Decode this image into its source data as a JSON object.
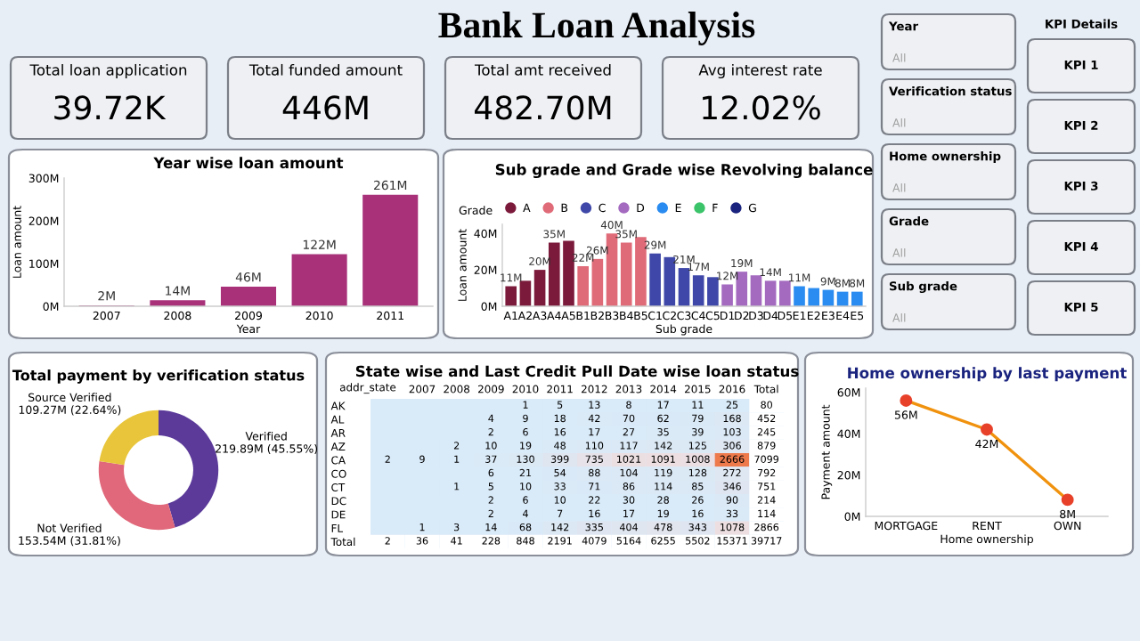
{
  "chart_data": [
    {
      "type": "other",
      "title": "Bank Loan Analysis",
      "annotations": [
        "Total loan application",
        "39.72K",
        "Total funded amount",
        "446M",
        "Total amt received",
        "482.70M",
        "Avg interest rate",
        "12.02%"
      ]
    },
    {
      "type": "other",
      "annotations": [
        "Year",
        "All",
        "Verification status",
        "All",
        "Home ownership",
        "All",
        "Grade",
        "All",
        "Sub grade",
        "All"
      ]
    },
    {
      "type": "other",
      "title": "KPI Details",
      "annotations": [
        "KPI 1",
        "KPI 2",
        "KPI 3",
        "KPI 4",
        "KPI 5"
      ]
    },
    {
      "type": "bar",
      "title": "Year wise loan amount",
      "xlabel": "Year",
      "ylabel": "Loan amount",
      "categories": [
        "2007",
        "2008",
        "2009",
        "2010",
        "2011"
      ],
      "values": [
        2,
        14,
        46,
        122,
        261
      ],
      "color": "#a8317a",
      "value_labels": [
        "2M",
        "14M",
        "46M",
        "122M",
        "261M"
      ],
      "ylim": [
        0,
        300
      ],
      "yticks": [
        {
          "value": 0,
          "label": "0M"
        },
        {
          "value": 100,
          "label": "100M"
        },
        {
          "value": 200,
          "label": "200M"
        },
        {
          "value": 300,
          "label": "300M"
        }
      ]
    },
    {
      "type": "bar",
      "title": "Sub grade and Grade wise Revolving balance",
      "xlabel": "Sub grade",
      "ylabel": "Loan amount",
      "legend_title": "Grade",
      "legend": "top left",
      "categories": [
        "A1",
        "A2",
        "A3",
        "A4",
        "A5",
        "B1",
        "B2",
        "B3",
        "B4",
        "B5",
        "C1",
        "C2",
        "C3",
        "C4",
        "C5",
        "D1",
        "D2",
        "D3",
        "D4",
        "D5",
        "E1",
        "E2",
        "E3",
        "E4",
        "E5"
      ],
      "ylim": [
        0,
        45
      ],
      "yticks": [
        {
          "value": 0,
          "label": "0M"
        },
        {
          "value": 20,
          "label": "20M"
        },
        {
          "value": 40,
          "label": "40M"
        }
      ],
      "series": [
        {
          "name": "A",
          "color": "#7b1a3a",
          "values": [
            11,
            14,
            20,
            35,
            36,
            null,
            null,
            null,
            null,
            null,
            null,
            null,
            null,
            null,
            null,
            null,
            null,
            null,
            null,
            null,
            null,
            null,
            null,
            null,
            null
          ],
          "value_labels": [
            "11M",
            null,
            "20M",
            "35M",
            null,
            null,
            null,
            null,
            null,
            null,
            null,
            null,
            null,
            null,
            null,
            null,
            null,
            null,
            null,
            null,
            null,
            null,
            null,
            null,
            null
          ]
        },
        {
          "name": "B",
          "color": "#e06b78",
          "values": [
            null,
            null,
            null,
            null,
            null,
            22,
            26,
            40,
            35,
            38,
            null,
            null,
            null,
            null,
            null,
            null,
            null,
            null,
            null,
            null,
            null,
            null,
            null,
            null,
            null
          ],
          "value_labels": [
            null,
            null,
            null,
            null,
            null,
            "22M",
            "26M",
            "40M",
            "35M",
            null,
            null,
            null,
            null,
            null,
            null,
            null,
            null,
            null,
            null,
            null,
            null,
            null,
            null,
            null,
            null
          ]
        },
        {
          "name": "C",
          "color": "#3f48a8",
          "values": [
            null,
            null,
            null,
            null,
            null,
            null,
            null,
            null,
            null,
            null,
            29,
            27,
            21,
            17,
            16,
            null,
            null,
            null,
            null,
            null,
            null,
            null,
            null,
            null,
            null
          ],
          "value_labels": [
            null,
            null,
            null,
            null,
            null,
            null,
            null,
            null,
            null,
            null,
            "29M",
            null,
            "21M",
            "17M",
            null,
            null,
            null,
            null,
            null,
            null,
            null,
            null,
            null,
            null,
            null
          ]
        },
        {
          "name": "D",
          "color": "#a46ac0",
          "values": [
            null,
            null,
            null,
            null,
            null,
            null,
            null,
            null,
            null,
            null,
            null,
            null,
            null,
            null,
            null,
            12,
            19,
            17,
            14,
            14,
            null,
            null,
            null,
            null,
            null
          ],
          "value_labels": [
            null,
            null,
            null,
            null,
            null,
            null,
            null,
            null,
            null,
            null,
            null,
            null,
            null,
            null,
            null,
            "12M",
            "19M",
            null,
            "14M",
            null,
            null,
            null,
            null,
            null,
            null
          ]
        },
        {
          "name": "E",
          "color": "#2a8cf0",
          "values": [
            null,
            null,
            null,
            null,
            null,
            null,
            null,
            null,
            null,
            null,
            null,
            null,
            null,
            null,
            null,
            null,
            null,
            null,
            null,
            null,
            11,
            10,
            9,
            8,
            8
          ],
          "value_labels": [
            null,
            null,
            null,
            null,
            null,
            null,
            null,
            null,
            null,
            null,
            null,
            null,
            null,
            null,
            null,
            null,
            null,
            null,
            null,
            null,
            "11M",
            null,
            "9M",
            "8M",
            "8M"
          ]
        },
        {
          "name": "F",
          "color": "#3cc46a",
          "values": [
            null,
            null,
            null,
            null,
            null,
            null,
            null,
            null,
            null,
            null,
            null,
            null,
            null,
            null,
            null,
            null,
            null,
            null,
            null,
            null,
            null,
            null,
            null,
            null,
            null
          ]
        },
        {
          "name": "G",
          "color": "#1a237e",
          "values": [
            null,
            null,
            null,
            null,
            null,
            null,
            null,
            null,
            null,
            null,
            null,
            null,
            null,
            null,
            null,
            null,
            null,
            null,
            null,
            null,
            null,
            null,
            null,
            null,
            null
          ]
        }
      ]
    },
    {
      "type": "donut",
      "title": "Total payment by verification status",
      "categories": [
        "Verified",
        "Not Verified",
        "Source Verified"
      ],
      "values": [
        45.55,
        31.81,
        22.64
      ],
      "colors": [
        "#5b3a9a",
        "#e0687a",
        "#e8c53a"
      ],
      "value_labels": [
        "219.89M (45.55%)",
        "153.54M (31.81%)",
        "109.27M (22.64%)"
      ]
    },
    {
      "type": "heatmap",
      "data_labels": true,
      "title": "State wise and Last Credit Pull Date wise loan status",
      "ylabel": "addr_state",
      "categories": [
        null,
        "2007",
        "2008",
        "2009",
        "2010",
        "2011",
        "2012",
        "2013",
        "2014",
        "2015",
        "2016",
        "Total"
      ],
      "y_categories": [
        "AK",
        "AL",
        "AR",
        "AZ",
        "CA",
        "CO",
        "CT",
        "DC",
        "DE",
        "FL",
        "Total"
      ],
      "cells": [
        [
          null,
          null,
          null,
          null,
          1,
          5,
          13,
          8,
          17,
          11,
          25,
          80
        ],
        [
          null,
          null,
          null,
          4,
          9,
          18,
          42,
          70,
          62,
          79,
          168,
          452
        ],
        [
          null,
          null,
          null,
          2,
          6,
          16,
          17,
          27,
          35,
          39,
          103,
          245
        ],
        [
          null,
          null,
          2,
          10,
          19,
          48,
          110,
          117,
          142,
          125,
          306,
          879
        ],
        [
          2,
          9,
          1,
          37,
          130,
          399,
          735,
          1021,
          1091,
          1008,
          2666,
          7099
        ],
        [
          null,
          null,
          null,
          6,
          21,
          54,
          88,
          104,
          119,
          128,
          272,
          792
        ],
        [
          null,
          null,
          1,
          5,
          10,
          33,
          71,
          86,
          114,
          85,
          346,
          751
        ],
        [
          null,
          null,
          null,
          2,
          6,
          10,
          22,
          30,
          28,
          26,
          90,
          214
        ],
        [
          null,
          null,
          null,
          2,
          4,
          7,
          16,
          17,
          19,
          16,
          33,
          114
        ],
        [
          null,
          1,
          3,
          14,
          68,
          142,
          335,
          404,
          478,
          343,
          1078,
          2866
        ],
        [
          2,
          36,
          41,
          228,
          848,
          2191,
          4079,
          5164,
          6255,
          5502,
          15371,
          39717
        ]
      ]
    },
    {
      "type": "line",
      "title": "Home ownership by last payment",
      "xlabel": "Home ownership",
      "ylabel": "Payment amount",
      "categories": [
        "MORTGAGE",
        "RENT",
        "OWN"
      ],
      "values": [
        56,
        42,
        8
      ],
      "color": "#f0920e",
      "marker": "circle",
      "value_labels": [
        "56M",
        "42M",
        "8M"
      ],
      "ylim": [
        0,
        62
      ],
      "yticks": [
        {
          "value": 0,
          "label": "0M"
        },
        {
          "value": 20,
          "label": "20M"
        },
        {
          "value": 40,
          "label": "40M"
        },
        {
          "value": 60,
          "label": "60M"
        }
      ]
    }
  ]
}
